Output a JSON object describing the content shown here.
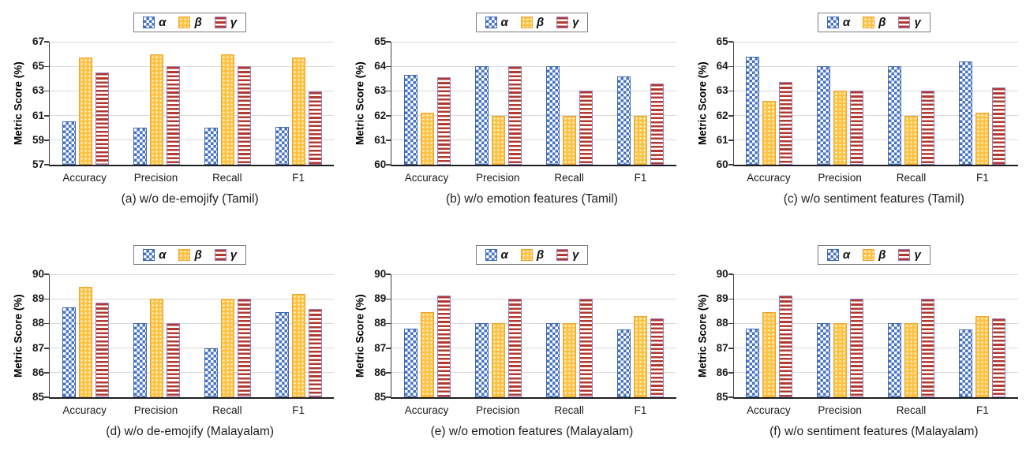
{
  "ylabel": "Metric Score (%)",
  "legend": {
    "items": [
      {
        "key": "alpha",
        "label": "α"
      },
      {
        "key": "beta",
        "label": "β"
      },
      {
        "key": "gamma",
        "label": "γ"
      }
    ]
  },
  "colors": {
    "alpha_blue": "#4472C4",
    "beta_gold": "#FEC342",
    "gamma_red": "#B13A30",
    "gamma_border_purple": "#9E7FC1",
    "gridline": "#D9D9D9",
    "axis": "#404040"
  },
  "chart_data": [
    {
      "type": "bar",
      "caption": "(a) w/o de-emojify (Tamil)",
      "ylabel": "Metric Score (%)",
      "ylim": [
        57,
        67
      ],
      "ystep": 2,
      "grid": true,
      "legend_position": "top",
      "categories": [
        "Accuracy",
        "Precision",
        "Recall",
        "F1"
      ],
      "series": [
        {
          "name": "α",
          "values": [
            60.5,
            60.0,
            60.0,
            60.1
          ]
        },
        {
          "name": "β",
          "values": [
            65.7,
            66.0,
            66.0,
            65.75
          ]
        },
        {
          "name": "γ",
          "values": [
            64.5,
            65.0,
            65.0,
            62.95
          ]
        }
      ]
    },
    {
      "type": "bar",
      "caption": "(b) w/o emotion features (Tamil)",
      "ylabel": "Metric Score (%)",
      "ylim": [
        60,
        65
      ],
      "ystep": 1,
      "grid": true,
      "legend_position": "top",
      "categories": [
        "Accuracy",
        "Precision",
        "Recall",
        "F1"
      ],
      "series": [
        {
          "name": "α",
          "values": [
            63.65,
            64.0,
            64.0,
            63.6
          ]
        },
        {
          "name": "β",
          "values": [
            62.1,
            62.0,
            62.0,
            62.0
          ]
        },
        {
          "name": "γ",
          "values": [
            63.55,
            64.0,
            63.0,
            63.3
          ]
        }
      ]
    },
    {
      "type": "bar",
      "caption": "(c) w/o sentiment features (Tamil)",
      "ylabel": "Metric Score (%)",
      "ylim": [
        60,
        65
      ],
      "ystep": 1,
      "grid": true,
      "legend_position": "top",
      "categories": [
        "Accuracy",
        "Precision",
        "Recall",
        "F1"
      ],
      "series": [
        {
          "name": "α",
          "values": [
            64.4,
            64.0,
            64.0,
            64.2
          ]
        },
        {
          "name": "β",
          "values": [
            62.6,
            63.0,
            62.0,
            62.1
          ]
        },
        {
          "name": "γ",
          "values": [
            63.35,
            63.0,
            63.0,
            63.15
          ]
        }
      ]
    },
    {
      "type": "bar",
      "caption": "(d) w/o de-emojify (Malayalam)",
      "ylabel": "Metric Score (%)",
      "ylim": [
        85,
        90
      ],
      "ystep": 1,
      "grid": true,
      "legend_position": "top",
      "categories": [
        "Accuracy",
        "Precision",
        "Recall",
        "F1"
      ],
      "series": [
        {
          "name": "α",
          "values": [
            88.65,
            88.0,
            87.0,
            88.45
          ]
        },
        {
          "name": "β",
          "values": [
            89.5,
            89.0,
            89.0,
            89.2
          ]
        },
        {
          "name": "γ",
          "values": [
            88.85,
            88.0,
            89.0,
            88.6
          ]
        }
      ]
    },
    {
      "type": "bar",
      "caption": "(e) w/o emotion features (Malayalam)",
      "ylabel": "Metric Score (%)",
      "ylim": [
        85,
        90
      ],
      "ystep": 1,
      "grid": true,
      "legend_position": "top",
      "categories": [
        "Accuracy",
        "Precision",
        "Recall",
        "F1"
      ],
      "series": [
        {
          "name": "α",
          "values": [
            87.8,
            88.0,
            88.0,
            87.75
          ]
        },
        {
          "name": "β",
          "values": [
            88.45,
            88.0,
            88.0,
            88.3
          ]
        },
        {
          "name": "γ",
          "values": [
            89.15,
            89.0,
            89.0,
            88.2
          ]
        }
      ]
    },
    {
      "type": "bar",
      "caption": "(f) w/o sentiment features (Malayalam)",
      "ylabel": "Metric Score (%)",
      "ylim": [
        85,
        90
      ],
      "ystep": 1,
      "grid": true,
      "legend_position": "top",
      "categories": [
        "Accuracy",
        "Precision",
        "Recall",
        "F1"
      ],
      "series": [
        {
          "name": "α",
          "values": [
            87.8,
            88.0,
            88.0,
            87.75
          ]
        },
        {
          "name": "β",
          "values": [
            88.45,
            88.0,
            88.0,
            88.3
          ]
        },
        {
          "name": "γ",
          "values": [
            89.15,
            89.0,
            89.0,
            88.2
          ]
        }
      ]
    }
  ]
}
